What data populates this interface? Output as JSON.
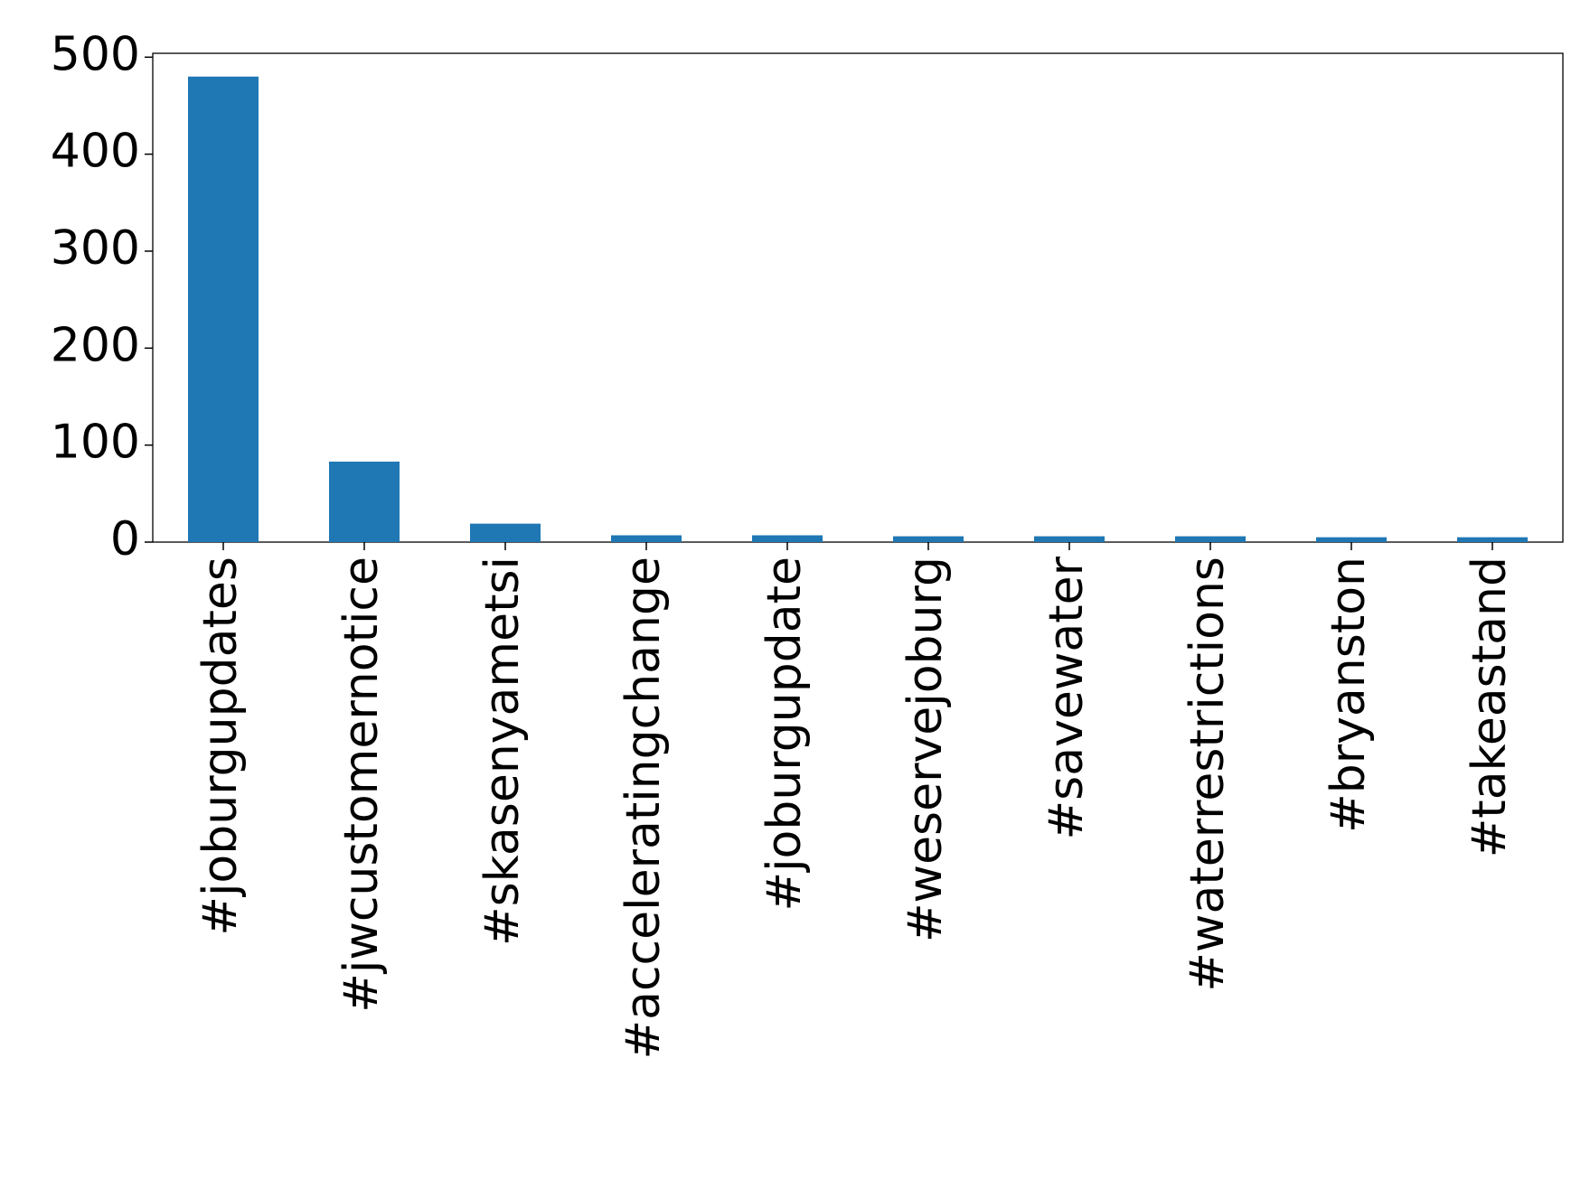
{
  "chart_data": {
    "type": "bar",
    "categories": [
      "#joburgupdates",
      "#jwcustomernotice",
      "#skasenyametsi",
      "#acceleratingchange",
      "#joburgupdate",
      "#weservejoburg",
      "#savewater",
      "#waterrestrictions",
      "#bryanston",
      "#takeastand"
    ],
    "values": [
      480,
      83,
      19,
      7,
      7,
      6,
      6,
      6,
      5,
      5
    ],
    "color": "#1f77b4",
    "ylim": [
      0,
      504
    ],
    "yticks": [
      0,
      100,
      200,
      300,
      400,
      500
    ],
    "grid": false
  }
}
